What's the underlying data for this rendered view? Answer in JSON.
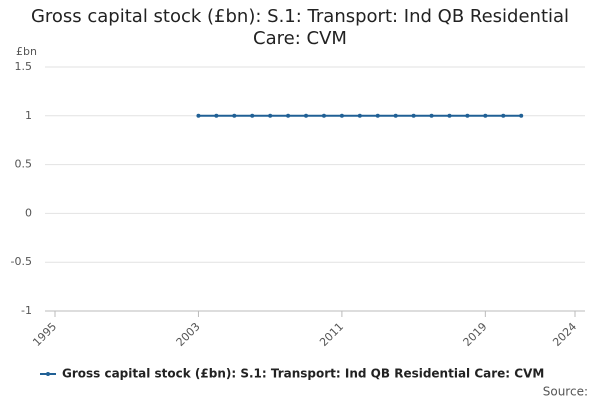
{
  "chart_data": {
    "type": "line",
    "title": "Gross capital stock (£bn): S.1: Transport: Ind QB Residential Care: CVM",
    "y_unit_label": "£bn",
    "source_label": "Source:",
    "x": [
      2003,
      2004,
      2005,
      2006,
      2007,
      2008,
      2009,
      2010,
      2011,
      2012,
      2013,
      2014,
      2015,
      2016,
      2017,
      2018,
      2019,
      2020,
      2021
    ],
    "series": [
      {
        "name": "Gross capital stock (£bn): S.1: Transport: Ind QB Residential Care: CVM",
        "color": "#206095",
        "values": [
          1,
          1,
          1,
          1,
          1,
          1,
          1,
          1,
          1,
          1,
          1,
          1,
          1,
          1,
          1,
          1,
          1,
          1,
          1
        ]
      }
    ],
    "xlim": [
      1995,
      2024
    ],
    "xticks": [
      1995,
      2003,
      2011,
      2019,
      2024
    ],
    "ylim": [
      -1,
      1.5
    ],
    "yticks": [
      -1,
      -0.5,
      0,
      0.5,
      1,
      1.5
    ],
    "grid": true
  }
}
